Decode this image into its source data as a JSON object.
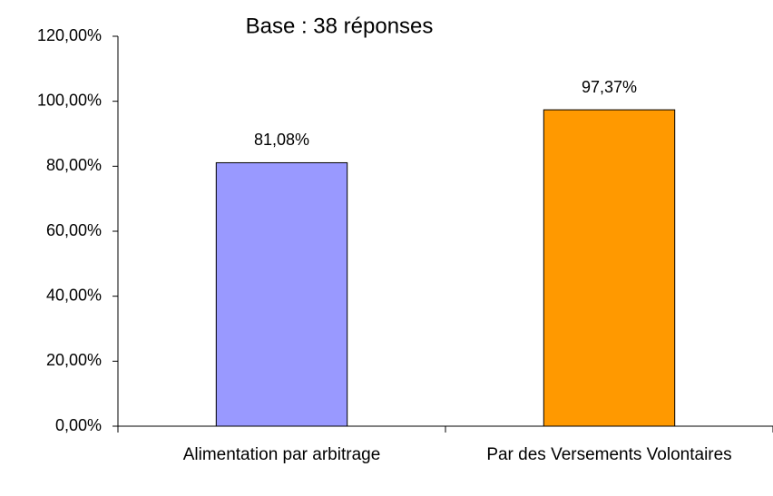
{
  "chart_data": {
    "type": "bar",
    "title": "Base : 38 réponses",
    "categories": [
      "Alimentation par arbitrage",
      "Par des Versements Volontaires"
    ],
    "values": [
      81.08,
      97.37
    ],
    "value_labels": [
      "81,08%",
      "97,37%"
    ],
    "colors": [
      "#9999ff",
      "#ff9900"
    ],
    "ylim": [
      0,
      120
    ],
    "yticks": [
      {
        "value": 0,
        "label": "0,00%"
      },
      {
        "value": 20,
        "label": "20,00%"
      },
      {
        "value": 40,
        "label": "40,00%"
      },
      {
        "value": 60,
        "label": "60,00%"
      },
      {
        "value": 80,
        "label": "80,00%"
      },
      {
        "value": 100,
        "label": "100,00%"
      },
      {
        "value": 120,
        "label": "120,00%"
      }
    ],
    "grid": false
  }
}
